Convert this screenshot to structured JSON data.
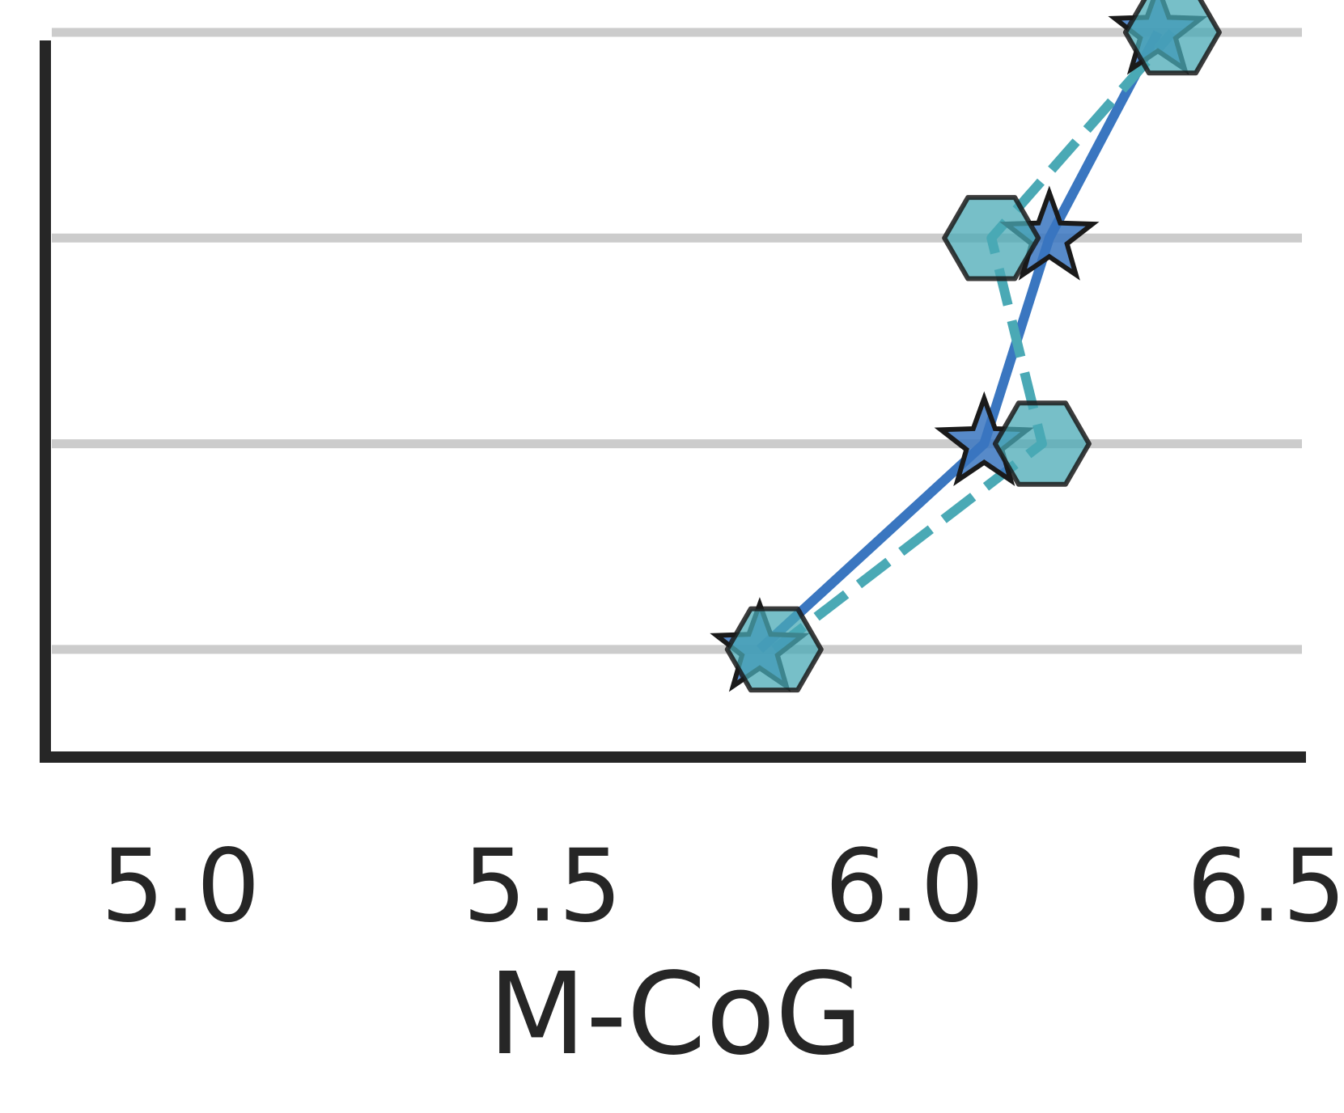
{
  "chart_data": {
    "type": "line",
    "xlabel": "M-CoG",
    "ylabel": "",
    "xlim": [
      4.82,
      6.55
    ],
    "ylim": [
      0.5,
      4.0
    ],
    "xticks": [
      5.0,
      5.5,
      6.0,
      6.5
    ],
    "xtick_labels": [
      "5.0",
      "5.5",
      "6.0",
      "6.5"
    ],
    "yticks": [
      1,
      2,
      3,
      4
    ],
    "grid": "horizontal",
    "colors": {
      "series_1": "#3a76c0",
      "series_2": "#4aa9b5",
      "hexagon_fill": "#4aa9b5",
      "marker_edge": "#1a1a1a",
      "grid": "#cccccc",
      "axis": "#262626"
    },
    "series": [
      {
        "marker": "star",
        "line": "solid",
        "x": [
          5.8,
          6.11,
          6.2,
          6.35
        ],
        "y": [
          1,
          2,
          3,
          4
        ]
      },
      {
        "marker": "hexagon",
        "line": "dashed",
        "x": [
          5.82,
          6.19,
          6.12,
          6.37
        ],
        "y": [
          1,
          2,
          3,
          4
        ]
      }
    ]
  }
}
